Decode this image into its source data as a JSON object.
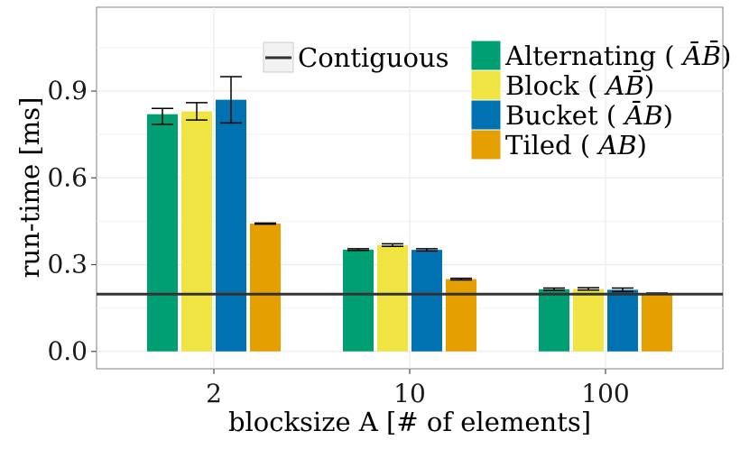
{
  "chart_data": {
    "type": "bar",
    "xlabel": "blocksize A [# of elements]",
    "ylabel": "run-time [ms]",
    "categories": [
      "2",
      "10",
      "100"
    ],
    "yticks": [
      "0.0",
      "0.3",
      "0.6",
      "0.9"
    ],
    "ylim": [
      -0.06,
      1.19
    ],
    "grid": true,
    "legend_position": "top-right",
    "series": [
      {
        "name": "Alternating ( ĀB̄ )",
        "label_main": "Alternating (",
        "label_math": "ĀB̄",
        "label_close": ")",
        "color": "#009E73",
        "values": [
          0.82,
          0.352,
          0.215
        ],
        "err_low": [
          0.785,
          0.349,
          0.211
        ],
        "err_high": [
          0.84,
          0.355,
          0.219
        ]
      },
      {
        "name": "Block ( AB̄ )",
        "label_main": "Block (",
        "label_math": "AB̄",
        "label_close": ")",
        "color": "#F0E442",
        "values": [
          0.83,
          0.368,
          0.216
        ],
        "err_low": [
          0.8,
          0.363,
          0.212
        ],
        "err_high": [
          0.86,
          0.372,
          0.22
        ]
      },
      {
        "name": "Bucket ( ĀB )",
        "label_main": "Bucket (",
        "label_math": "ĀB",
        "label_close": ")",
        "color": "#0072B2",
        "values": [
          0.87,
          0.351,
          0.213
        ],
        "err_low": [
          0.79,
          0.347,
          0.207
        ],
        "err_high": [
          0.95,
          0.355,
          0.219
        ]
      },
      {
        "name": "Tiled ( AB )",
        "label_main": "Tiled (",
        "label_math": "AB",
        "label_close": ")",
        "color": "#E69F00",
        "values": [
          0.442,
          0.25,
          0.2
        ],
        "err_low": [
          0.44,
          0.247,
          0.198
        ],
        "err_high": [
          0.444,
          0.253,
          0.202
        ]
      }
    ],
    "reference_line": {
      "name": "Contiguous",
      "value": 0.198,
      "color": "#333333"
    }
  }
}
